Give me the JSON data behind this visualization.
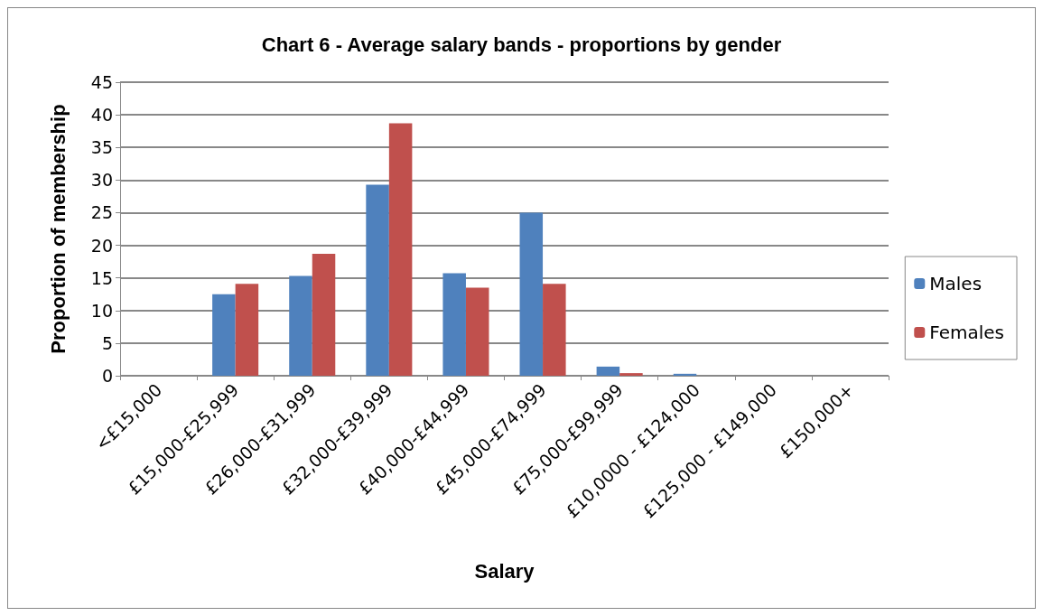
{
  "chart_data": {
    "type": "bar",
    "title": "Chart 6 - Average salary bands - proportions by gender",
    "xlabel": "Salary",
    "ylabel": "Proportion of membership",
    "categories": [
      "<£15,000",
      "£15,000-£25,999",
      "£26,000-£31,999",
      "£32,000-£39,999",
      "£40,000-£44,999",
      "£45,000-£74,999",
      "£75,000-£99,999",
      "£10,0000 - £124,000",
      "£125,000 - £149,000",
      "£150,000+"
    ],
    "series": [
      {
        "name": "Males",
        "color": "#4f81bd",
        "values": [
          0,
          12.5,
          15.3,
          29.3,
          15.7,
          25,
          1.4,
          0.3,
          0,
          0
        ]
      },
      {
        "name": "Females",
        "color": "#c0504d",
        "values": [
          0,
          14.1,
          18.7,
          38.7,
          13.5,
          14.1,
          0.4,
          0,
          0,
          0
        ]
      }
    ],
    "ylim": [
      0,
      45
    ],
    "yticks": [
      0,
      5,
      10,
      15,
      20,
      25,
      30,
      35,
      40,
      45
    ],
    "grid": "y",
    "legend": "right"
  }
}
